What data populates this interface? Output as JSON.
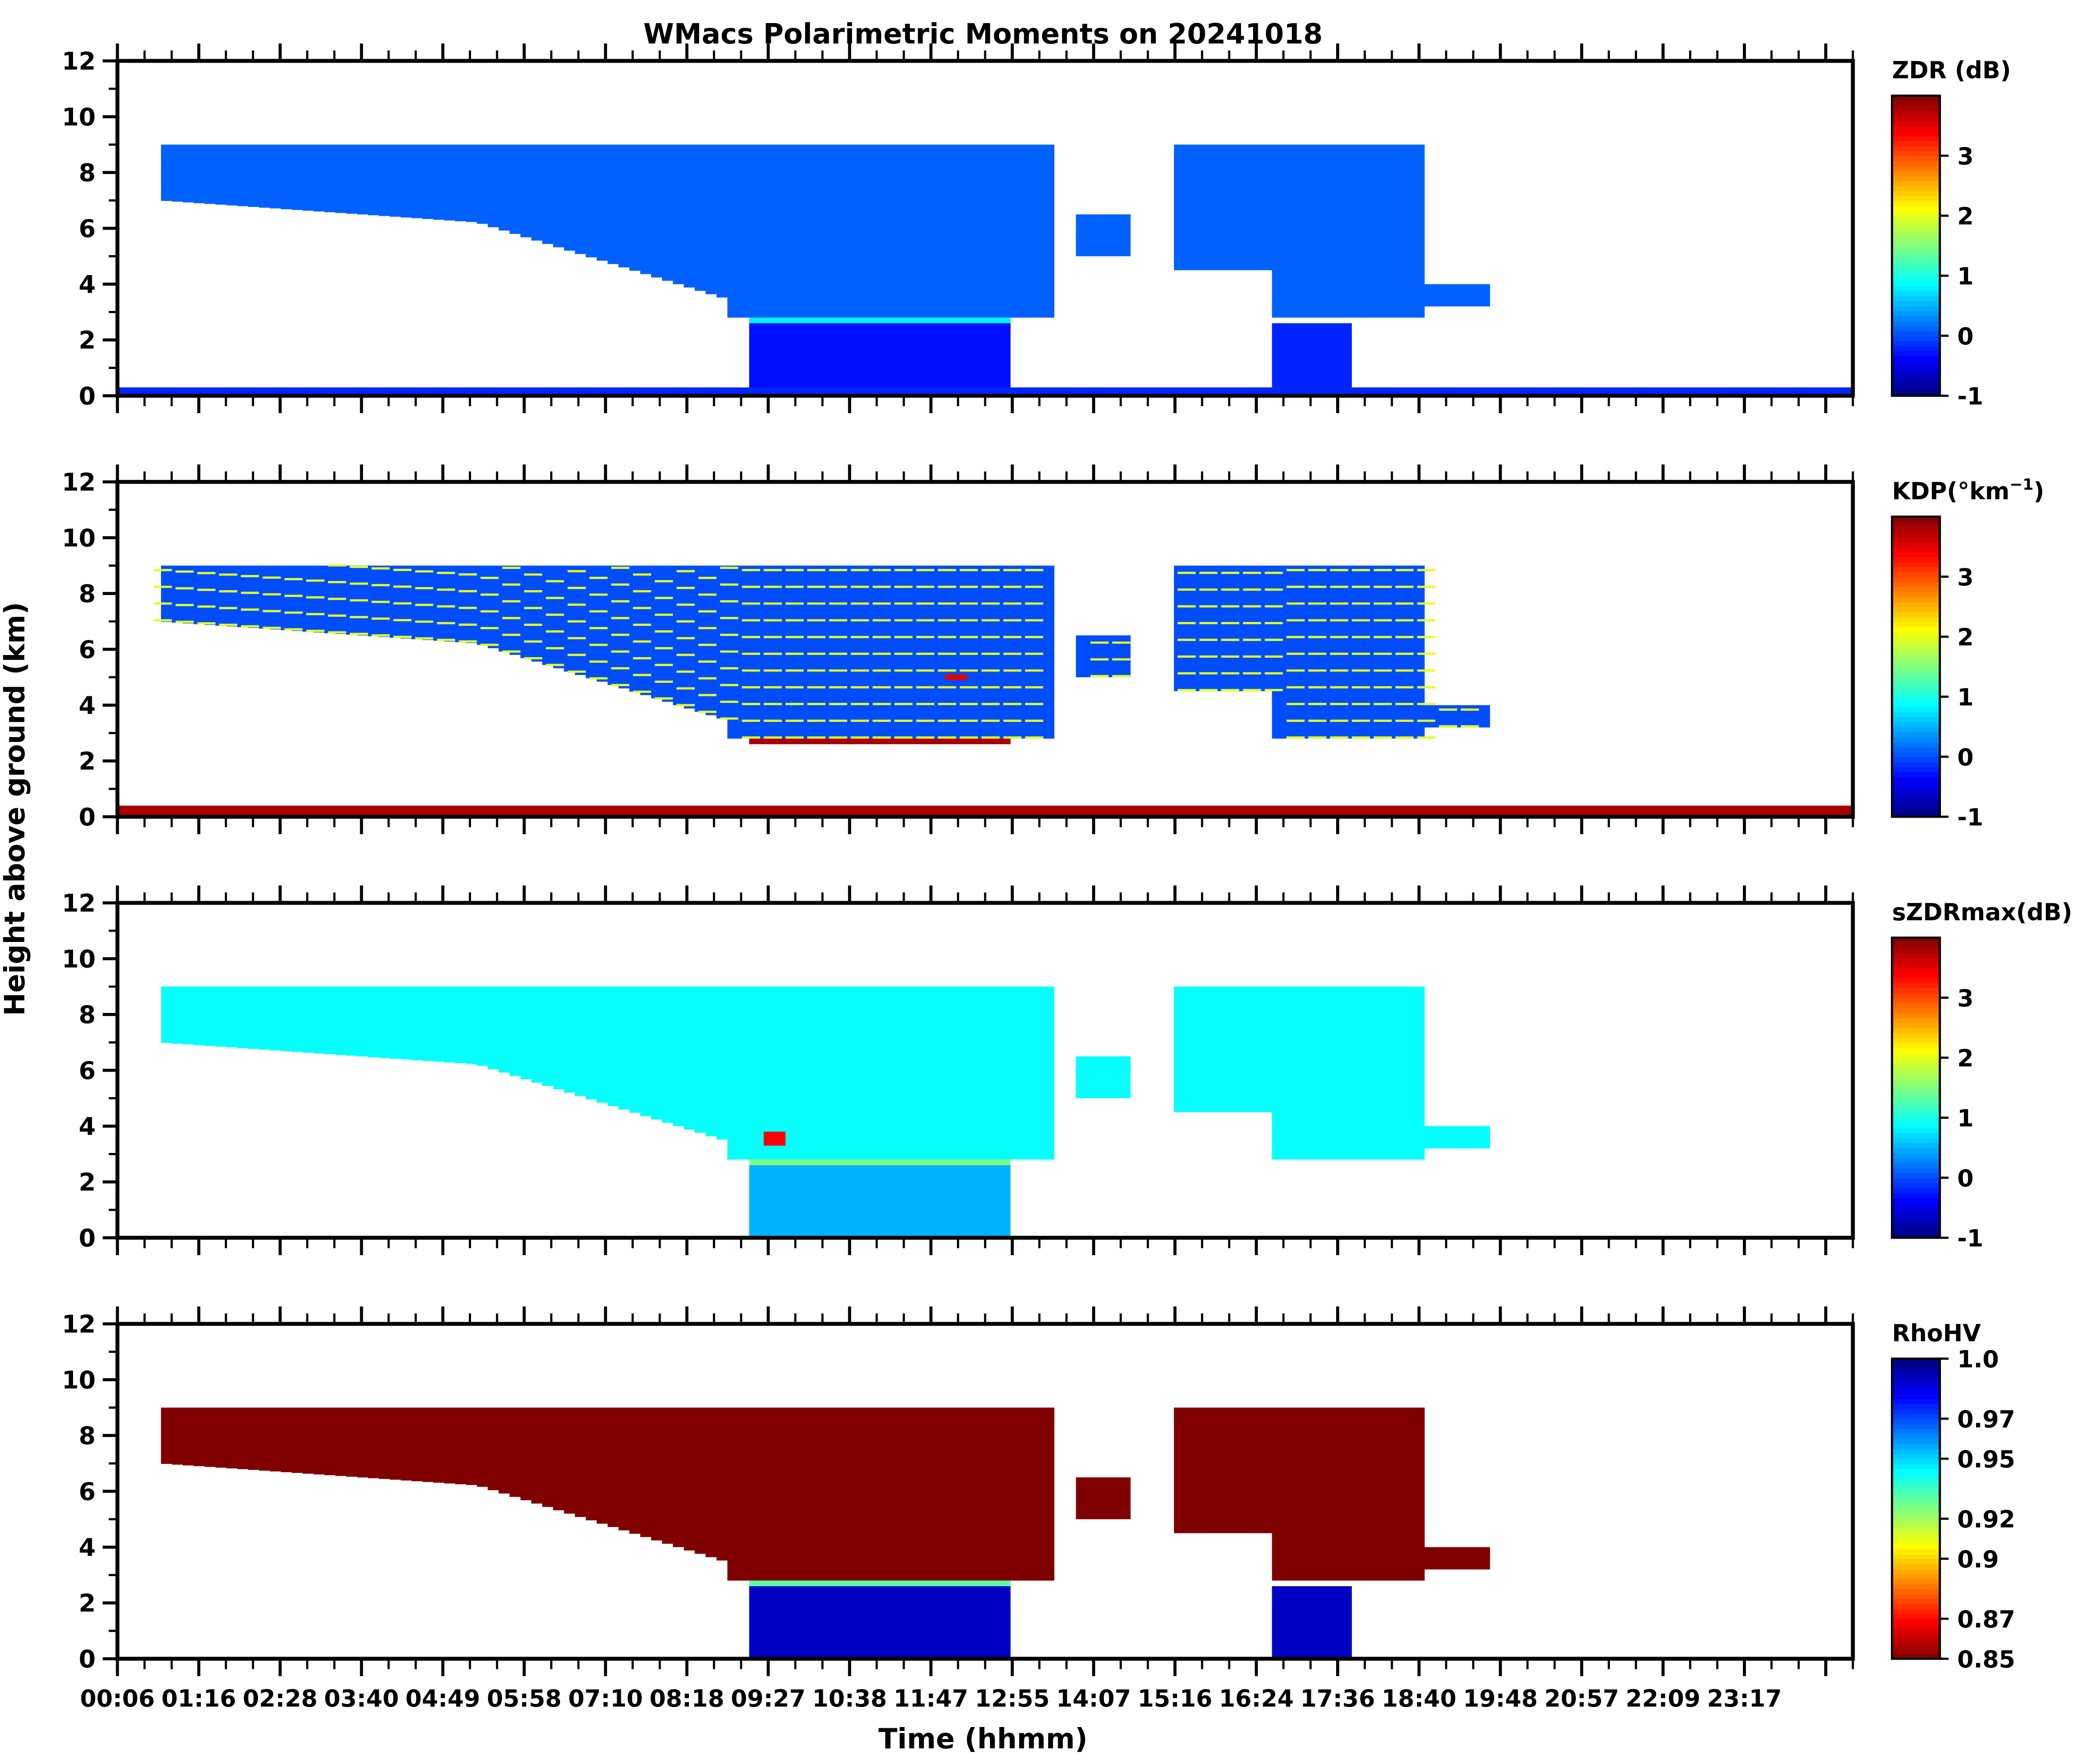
{
  "figure": {
    "title": "WMacs Polarimetric Moments on 20241018",
    "xlabel": "Time (hhmm)",
    "ylabel": "Height above ground (km)"
  },
  "chart_data": [
    {
      "type": "heatmap",
      "panel": 1,
      "variable": "ZDR",
      "colorbar_label": "ZDR (dB)",
      "colormap": "jet",
      "clim": [
        -1,
        4
      ],
      "colorbar_ticks": [
        "-1",
        "0",
        "1",
        "2",
        "3"
      ],
      "background_value": 0.1,
      "ylim": [
        0,
        12
      ],
      "yticks": [
        "0",
        "2",
        "4",
        "6",
        "8",
        "10",
        "12"
      ],
      "xlim_hours": [
        0.1,
        24.0
      ],
      "xtick_labels": [
        "00:06",
        "01:16",
        "02:28",
        "03:40",
        "04:49",
        "05:58",
        "07:10",
        "08:18",
        "09:27",
        "10:38",
        "11:47",
        "12:55",
        "14:07",
        "15:16",
        "16:24",
        "17:36",
        "18:40",
        "19:48",
        "20:57",
        "22:09",
        "23:17"
      ],
      "features": [
        {
          "name": "melting layer bright band",
          "height_km": 2.7,
          "hours": [
            8.8,
            12.4
          ],
          "value": 0.8
        },
        {
          "name": "rain below melting layer",
          "height_km": [
            0,
            2.6
          ],
          "hours": [
            8.8,
            12.4
          ],
          "value": -0.3
        },
        {
          "name": "rain below melting layer",
          "height_km": [
            0,
            2.6
          ],
          "hours": [
            16.0,
            17.1
          ],
          "value": -0.2
        },
        {
          "name": "surface clutter",
          "height_km": [
            0,
            0.3
          ],
          "hours": [
            0.1,
            24.0
          ],
          "value": -0.2
        },
        {
          "name": "upper cloud deck",
          "height_km": [
            2.8,
            9.0
          ],
          "hours": [
            0.6,
            18.9
          ],
          "value": 0.1
        }
      ]
    },
    {
      "type": "heatmap",
      "panel": 2,
      "variable": "KDP",
      "colorbar_label": "KDP(°km",
      "colorbar_label_sup": "−1",
      "colorbar_label_end": ")",
      "colormap": "jet",
      "clim": [
        -1,
        4
      ],
      "colorbar_ticks": [
        "-1",
        "0",
        "1",
        "2",
        "3"
      ],
      "background_value": 0.0,
      "ylim": [
        0,
        12
      ],
      "yticks": [
        "0",
        "2",
        "4",
        "6",
        "8",
        "10",
        "12"
      ],
      "xlim_hours": [
        0.1,
        24.0
      ],
      "features": [
        {
          "name": "melting layer",
          "height_km": 2.7,
          "hours": [
            8.8,
            12.4
          ],
          "value": 3.8
        },
        {
          "name": "enhanced KDP core",
          "height_km": 5.0,
          "hours": [
            11.5,
            11.8
          ],
          "value": 3.5
        },
        {
          "name": "surface clutter",
          "height_km": [
            0,
            0.4
          ],
          "hours": [
            0.1,
            24.0
          ],
          "value": 3.8
        },
        {
          "name": "banded layers in cloud",
          "height_km": [
            4.0,
            9.0
          ],
          "hours": [
            0.6,
            18.9
          ],
          "value": 2.0
        }
      ]
    },
    {
      "type": "heatmap",
      "panel": 3,
      "variable": "sZDRmax",
      "colorbar_label": "sZDRmax(dB)",
      "colormap": "jet",
      "clim": [
        -1,
        4
      ],
      "colorbar_ticks": [
        "-1",
        "0",
        "1",
        "2",
        "3"
      ],
      "background_value": 0.9,
      "ylim": [
        0,
        12
      ],
      "yticks": [
        "0",
        "2",
        "4",
        "6",
        "8",
        "10",
        "12"
      ],
      "xlim_hours": [
        0.1,
        24.0
      ],
      "features": [
        {
          "name": "melting layer",
          "height_km": 2.7,
          "hours": [
            8.8,
            12.4
          ],
          "value": 1.5
        },
        {
          "name": "rain below melting layer",
          "height_km": [
            0,
            2.6
          ],
          "hours": [
            8.8,
            12.4
          ],
          "value": 0.5
        },
        {
          "name": "isolated high values",
          "height_km": [
            3.3,
            3.8
          ],
          "hours": [
            9.0,
            9.3
          ],
          "value": 3.4
        }
      ]
    },
    {
      "type": "heatmap",
      "panel": 4,
      "variable": "RhoHV",
      "colorbar_label": "RhoHV",
      "colormap": "jet_r",
      "clim": [
        0.85,
        1.0
      ],
      "colorbar_ticks": [
        "0.85",
        "0.87",
        "0.9",
        "0.92",
        "0.95",
        "0.97",
        "1.0"
      ],
      "background_value": 0.85,
      "ylim": [
        0,
        12
      ],
      "yticks": [
        "0",
        "2",
        "4",
        "6",
        "8",
        "10",
        "12"
      ],
      "xlim_hours": [
        0.1,
        24.0
      ],
      "features": [
        {
          "name": "melting layer",
          "height_km": 2.7,
          "hours": [
            8.8,
            12.4
          ],
          "value": 0.93
        },
        {
          "name": "rain below melting layer",
          "height_km": [
            0,
            2.6
          ],
          "hours": [
            8.8,
            12.4
          ],
          "value": 0.99
        },
        {
          "name": "rain below melting layer",
          "height_km": [
            0,
            2.6
          ],
          "hours": [
            16.0,
            17.1
          ],
          "value": 0.99
        },
        {
          "name": "cloud deck",
          "height_km": [
            2.8,
            9.0
          ],
          "hours": [
            0.6,
            18.9
          ],
          "value": 0.85
        }
      ]
    }
  ]
}
